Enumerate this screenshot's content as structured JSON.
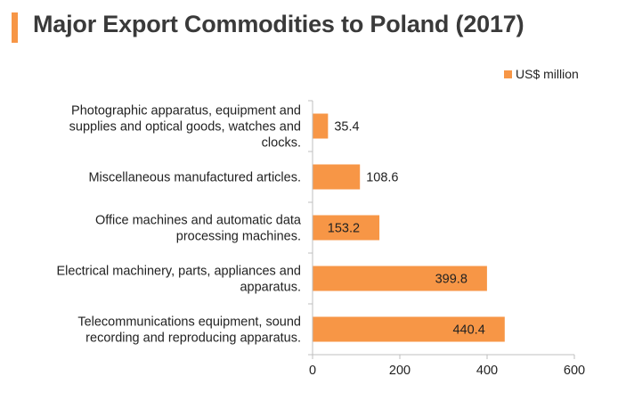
{
  "title": "Major Export Commodities to Poland (2017)",
  "colors": {
    "accent": "#f79646",
    "bar": "#f79646",
    "axis": "#bfbfbf"
  },
  "chart_data": {
    "type": "bar",
    "orientation": "horizontal",
    "categories": [
      "Photographic apparatus, equipment and supplies and optical goods, watches and clocks.",
      "Miscellaneous manufactured articles.",
      "Office machines and automatic data processing machines.",
      "Electrical machinery, parts, appliances and apparatus.",
      "Telecommunications equipment, sound recording and reproducing apparatus."
    ],
    "category_lines": [
      [
        "Photographic apparatus, equipment and",
        "supplies and optical goods, watches and",
        "clocks."
      ],
      [
        "Miscellaneous manufactured articles."
      ],
      [
        "Office machines and automatic data",
        "processing machines."
      ],
      [
        "Electrical machinery, parts, appliances and",
        "apparatus."
      ],
      [
        "Telecommunications equipment, sound",
        "recording and reproducing apparatus."
      ]
    ],
    "series": [
      {
        "name": "US$ million",
        "values": [
          35.4,
          108.6,
          153.2,
          399.8,
          440.4
        ],
        "labels": [
          "35.4",
          "108.6",
          "153.2",
          "399.8",
          "440.4"
        ]
      }
    ],
    "xlim": [
      0,
      600
    ],
    "xticks": [
      0,
      200,
      400,
      600
    ],
    "xtick_labels": [
      "0",
      "200",
      "400",
      "600"
    ],
    "grid": false,
    "legend": "top-right"
  }
}
